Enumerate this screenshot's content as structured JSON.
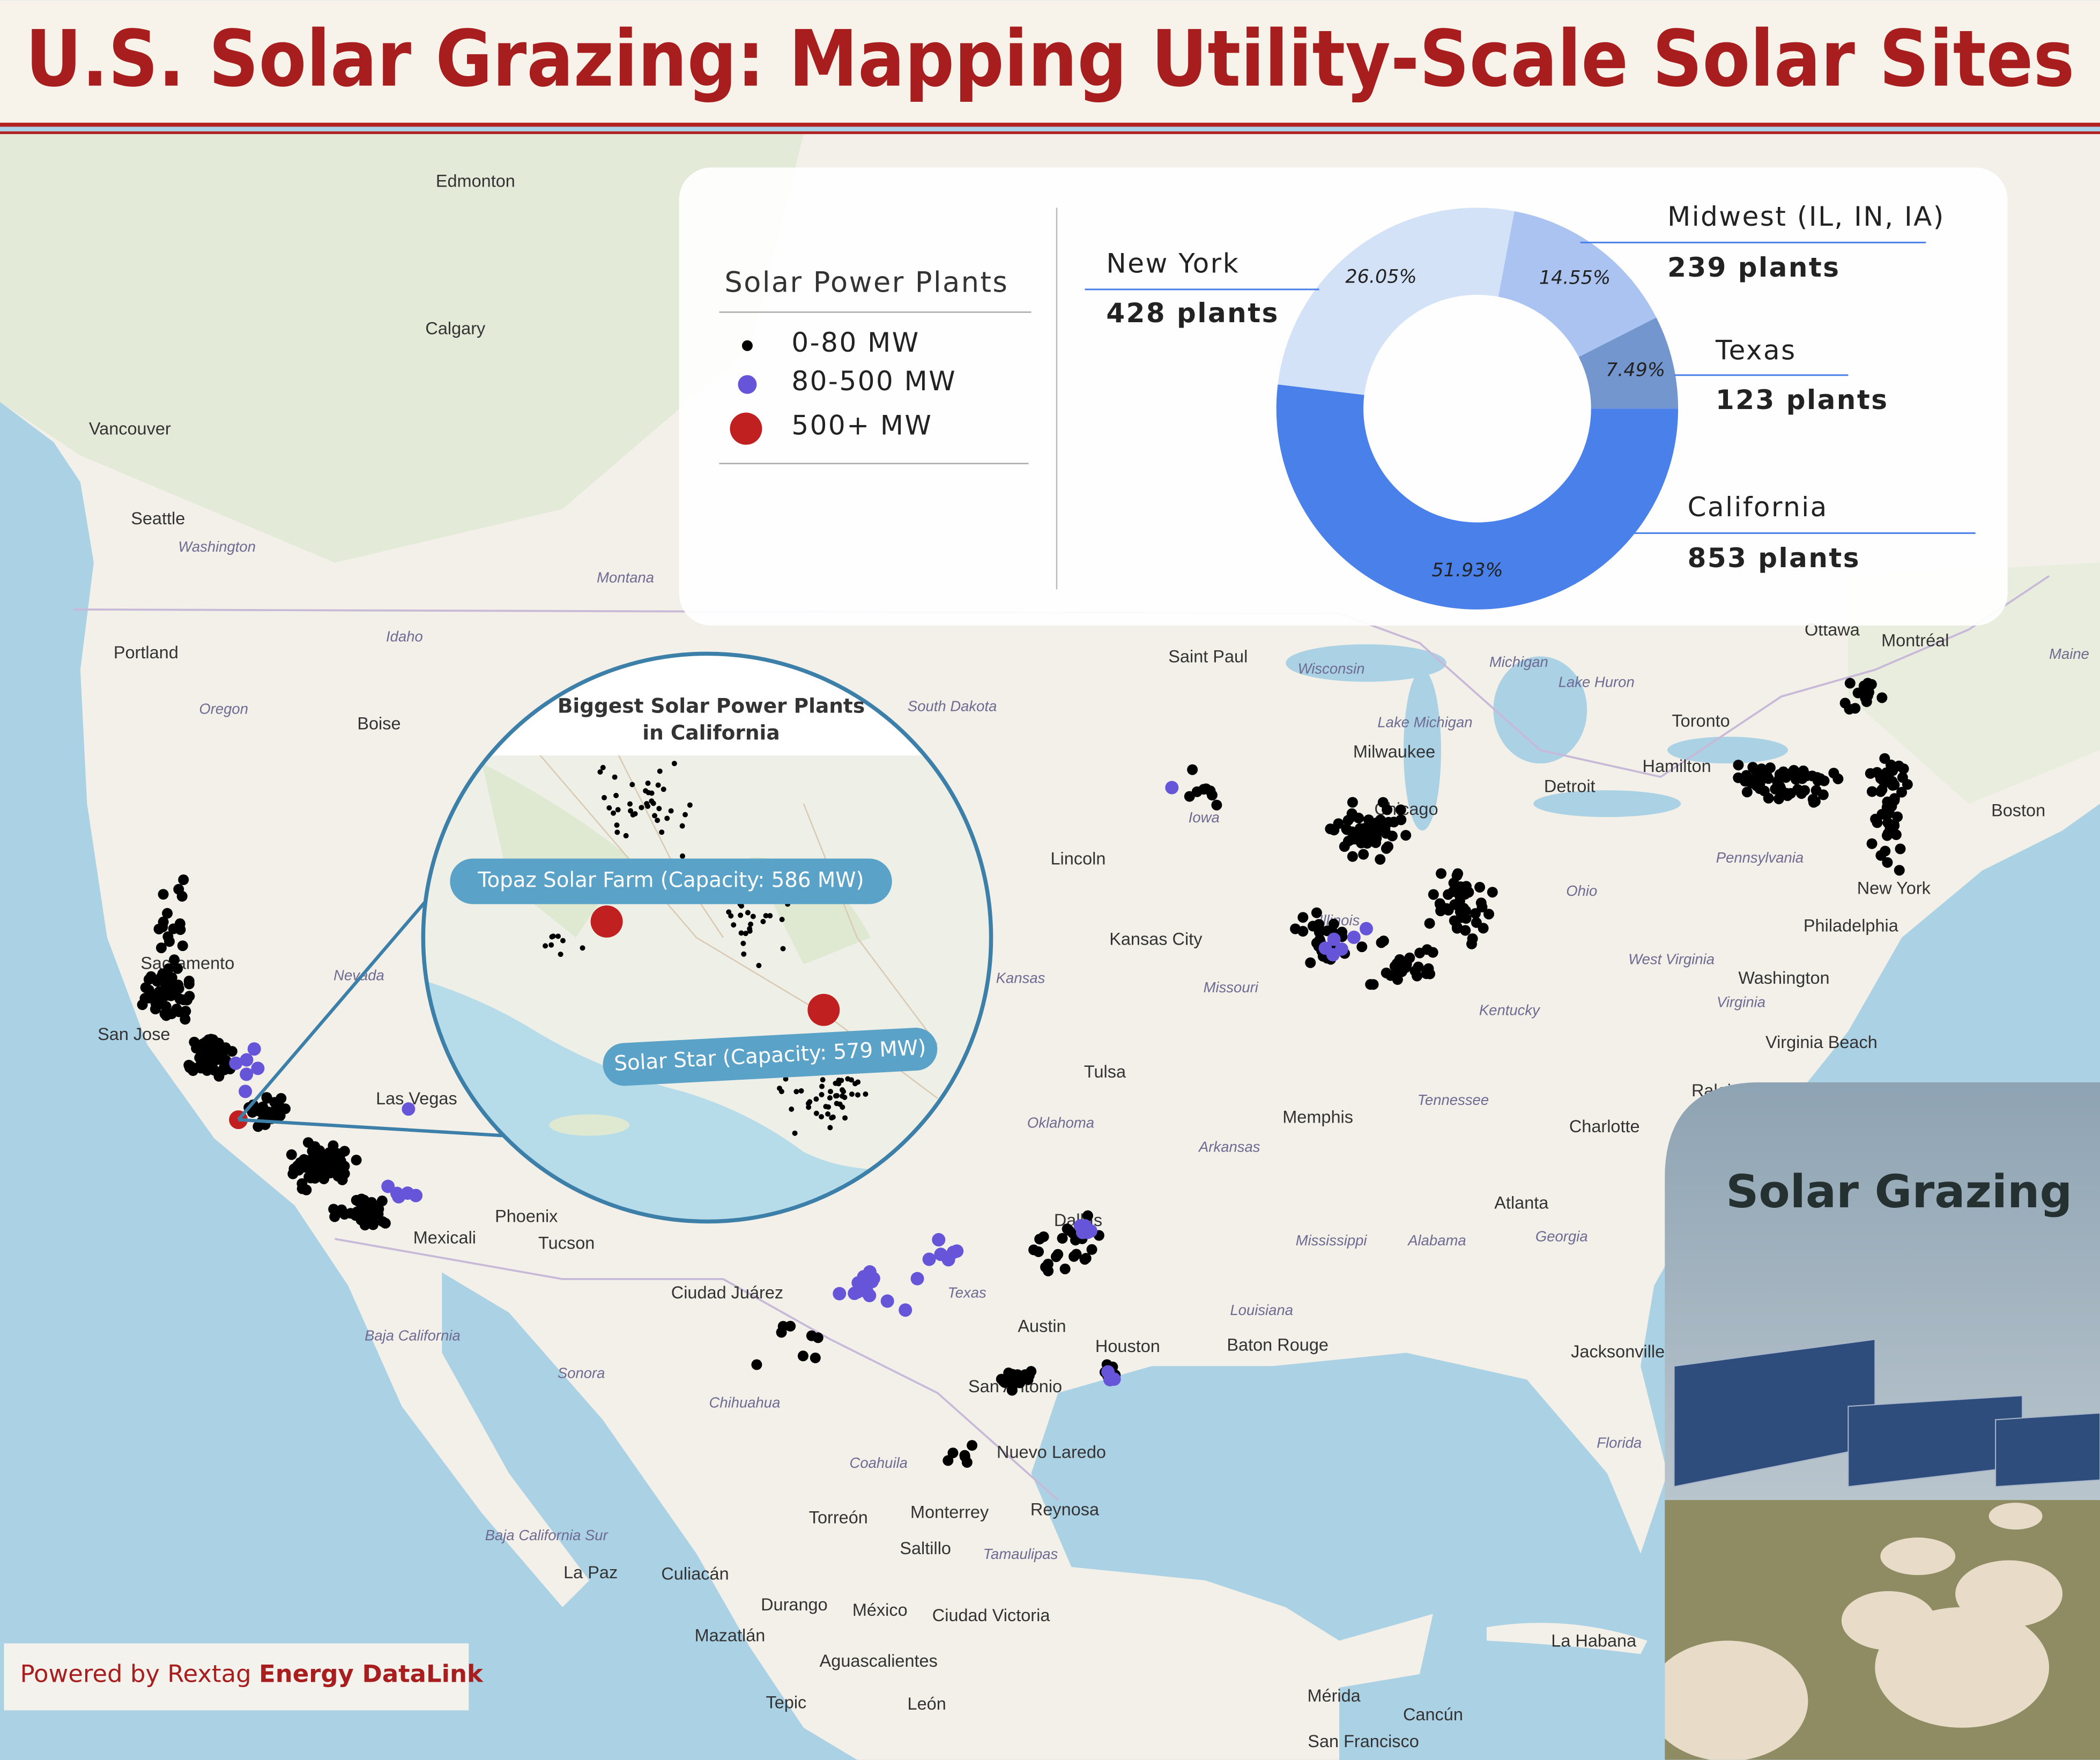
{
  "header": {
    "title": "U.S. Solar Grazing: Mapping Utility-Scale Solar Sites"
  },
  "legend": {
    "title": "Solar Power Plants",
    "items": [
      "0-80 MW",
      "80-500 MW",
      "500+ MW"
    ]
  },
  "chart_data": {
    "type": "pie",
    "categories": [
      "California",
      "New York",
      "Midwest (IL, IN, IA)",
      "Texas"
    ],
    "values": [
      51.93,
      26.05,
      14.55,
      7.49
    ],
    "value_labels": [
      "51.93%",
      "26.05%",
      "14.55%",
      "7.49%"
    ],
    "count_labels": [
      "853 plants",
      "428 plants",
      "239 plants",
      "123 plants"
    ],
    "colors": [
      "#4a80ea",
      "#d4e2f8",
      "#aac3f0",
      "#7496cf"
    ],
    "donut": true
  },
  "inset": {
    "title_lines": [
      "Biggest Solar Power Plants",
      "in California"
    ],
    "callouts": [
      "Topaz Solar Farm (Capacity: 586 MW)",
      "Solar Star (Capacity: 579 MW)"
    ]
  },
  "panel": {
    "title": "Solar Grazing"
  },
  "footer": {
    "prefix": "Powered by Rextag",
    "brand": "Energy DataLink"
  },
  "map": {
    "cities": [
      "Edmonton",
      "Calgary",
      "Vancouver",
      "Seattle",
      "Portland",
      "Boise",
      "Sacramento",
      "San Jose",
      "Las Vegas",
      "Phoenix",
      "Tucson",
      "Mexicali",
      "Ciudad Juárez",
      "Saint Paul",
      "Milwaukee",
      "Chicago",
      "Detroit",
      "Toronto",
      "Hamilton",
      "Ottawa",
      "Montréal",
      "Boston",
      "New York",
      "Philadelphia",
      "Washington",
      "Virginia Beach",
      "Raleigh",
      "Charlotte",
      "Atlanta",
      "Jacksonville",
      "Memphis",
      "Lincoln",
      "Kansas City",
      "Tulsa",
      "Dallas",
      "Austin",
      "San Antonio",
      "Houston",
      "Baton Rouge",
      "Nuevo Laredo",
      "Reynosa",
      "Monterrey",
      "Saltillo",
      "Torreón",
      "Culiacán",
      "La Paz",
      "Durango",
      "México",
      "Ciudad Victoria",
      "Mazatlán",
      "Aguascalientes",
      "Tepic",
      "León",
      "La Habana",
      "Mérida",
      "Cancún",
      "San Francisco"
    ],
    "regions": [
      "Washington",
      "Oregon",
      "Idaho",
      "Montana",
      "Nevada",
      "South Dakota",
      "Iowa",
      "Illinois",
      "Kansas",
      "Missouri",
      "Oklahoma",
      "Arkansas",
      "Texas",
      "Wisconsin",
      "Michigan",
      "Ohio",
      "Kentucky",
      "Tennessee",
      "Mississippi",
      "Alabama",
      "Georgia",
      "Louisiana",
      "Florida",
      "Pennsylvania",
      "West Virginia",
      "Virginia",
      "Maine",
      "Baja California",
      "Sonora",
      "Chihuahua",
      "Coahuila",
      "Tamaulipas",
      "Lake Michigan",
      "Lake Huron",
      "Baja California Sur"
    ]
  }
}
